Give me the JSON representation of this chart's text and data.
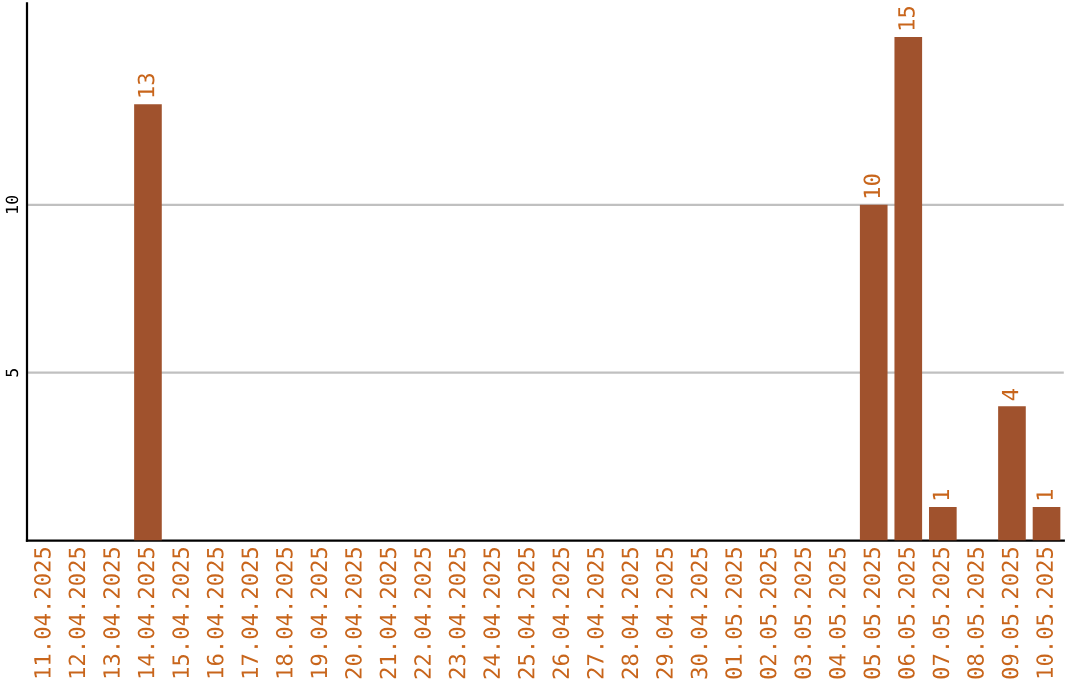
{
  "chart_data": {
    "type": "bar",
    "categories": [
      "11.04.2025",
      "12.04.2025",
      "13.04.2025",
      "14.04.2025",
      "15.04.2025",
      "16.04.2025",
      "17.04.2025",
      "18.04.2025",
      "19.04.2025",
      "20.04.2025",
      "21.04.2025",
      "22.04.2025",
      "23.04.2025",
      "24.04.2025",
      "25.04.2025",
      "26.04.2025",
      "27.04.2025",
      "28.04.2025",
      "29.04.2025",
      "30.04.2025",
      "01.05.2025",
      "02.05.2025",
      "03.05.2025",
      "04.05.2025",
      "05.05.2025",
      "06.05.2025",
      "07.05.2025",
      "08.05.2025",
      "09.05.2025",
      "10.05.2025"
    ],
    "values": [
      null,
      null,
      null,
      13,
      null,
      null,
      null,
      null,
      null,
      null,
      null,
      null,
      null,
      null,
      null,
      null,
      null,
      null,
      null,
      null,
      null,
      null,
      null,
      null,
      10,
      15,
      1,
      null,
      4,
      1
    ],
    "color": "#a0522d",
    "ylim": [
      0,
      16
    ],
    "yticks": [
      5,
      10
    ],
    "grid": "y",
    "data_labels": true
  }
}
